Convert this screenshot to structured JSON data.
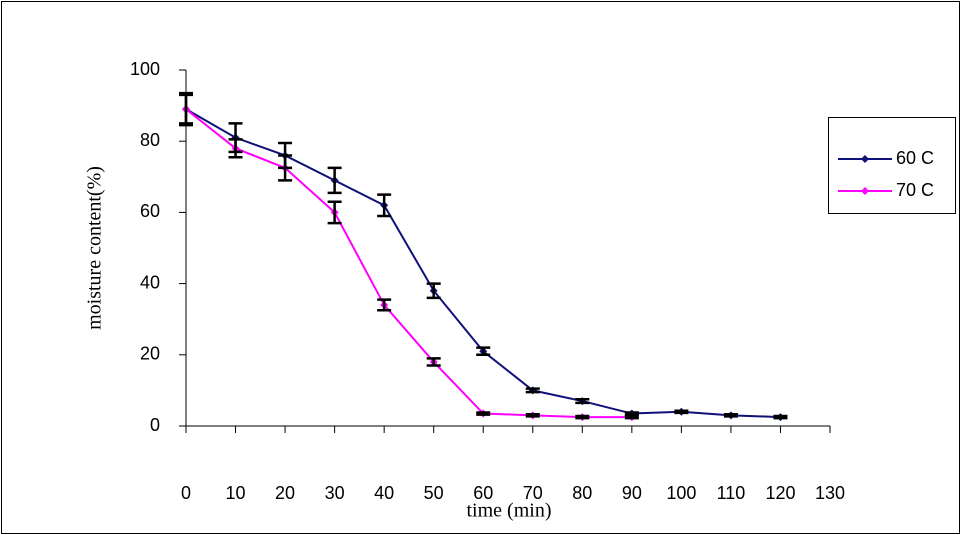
{
  "chart_data": {
    "type": "line",
    "xlabel": "time (min)",
    "ylabel": "moisture content(%)",
    "x": [
      0,
      10,
      20,
      30,
      40,
      50,
      60,
      70,
      80,
      90,
      100,
      110,
      120
    ],
    "series": [
      {
        "name": "60 C",
        "color": "#10107a",
        "values": [
          89,
          81,
          76,
          69,
          62,
          38,
          21,
          10,
          7,
          3.5,
          4,
          3,
          2.5
        ],
        "errors": [
          4.5,
          4,
          3.5,
          3.5,
          3,
          2,
          1,
          0.5,
          0.5,
          0.3,
          0.3,
          0.3,
          0.3
        ]
      },
      {
        "name": "70 C",
        "color": "#ff00ff",
        "values": [
          89,
          78,
          72.5,
          60,
          34,
          18,
          3.5,
          3,
          2.5,
          2.5,
          null,
          null,
          null
        ],
        "errors": [
          4,
          2.5,
          3.5,
          3,
          1.5,
          1,
          0.3,
          0.3,
          0.3,
          0.3,
          null,
          null,
          null
        ]
      }
    ],
    "error_color": "#000000",
    "xlim": [
      0,
      130
    ],
    "xticks": [
      0,
      10,
      20,
      30,
      40,
      50,
      60,
      70,
      80,
      90,
      100,
      110,
      120,
      130
    ],
    "ylim": [
      0,
      100
    ],
    "yticks": [
      0,
      20,
      40,
      60,
      80,
      100
    ],
    "grid": false,
    "legend": "right"
  }
}
